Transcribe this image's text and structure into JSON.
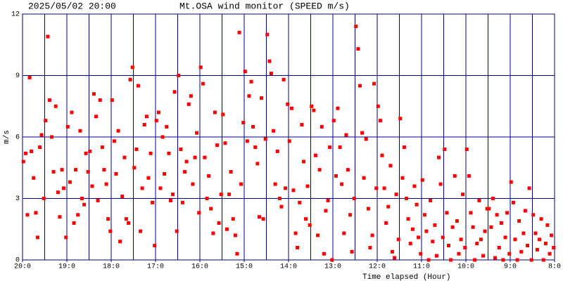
{
  "chart_data": {
    "type": "scatter",
    "title": "Mt.OSA wind monitor (SPEED m/s)",
    "subtitle": "2025/05/02 20:00",
    "x_label": "Time elapsed (Hour)",
    "y_label": "m/s",
    "xlim": [
      0,
      12
    ],
    "ylim": [
      0,
      12
    ],
    "xticks": [
      {
        "value": 0,
        "label": "20:0"
      },
      {
        "value": 1,
        "label": "19:0"
      },
      {
        "value": 2,
        "label": "18:0"
      },
      {
        "value": 3,
        "label": "17:0"
      },
      {
        "value": 4,
        "label": "16:0"
      },
      {
        "value": 5,
        "label": "15:0"
      },
      {
        "value": 6,
        "label": "14:0"
      },
      {
        "value": 7,
        "label": "13:0"
      },
      {
        "value": 8,
        "label": "12:0"
      },
      {
        "value": 9,
        "label": "11:0"
      },
      {
        "value": 10,
        "label": "10:0"
      },
      {
        "value": 11,
        "label": "9:0"
      },
      {
        "value": 12,
        "label": "8:0"
      }
    ],
    "xgrid": [
      0.5,
      1,
      1.5,
      2,
      2.5,
      3,
      3.5,
      4,
      4.5,
      5,
      5.5,
      6,
      6.5,
      7,
      7.5,
      8,
      8.5,
      9,
      9.5,
      10,
      10.5,
      11,
      11.5
    ],
    "yticks": [
      0,
      3,
      6,
      9,
      12
    ],
    "grid": true,
    "grid_color": "#000080",
    "series": [
      {
        "color": "#ff0000",
        "x": [
          0.02,
          0.07,
          0.11,
          0.16,
          0.2,
          0.25,
          0.3,
          0.34,
          0.39,
          0.43,
          0.48,
          0.52,
          0.57,
          0.61,
          0.66,
          0.7,
          0.75,
          0.8,
          0.84,
          0.89,
          0.93,
          0.98,
          1.02,
          1.07,
          1.11,
          1.16,
          1.2,
          1.25,
          1.3,
          1.34,
          1.39,
          1.43,
          1.48,
          1.52,
          1.57,
          1.61,
          1.66,
          1.7,
          1.75,
          1.8,
          1.84,
          1.89,
          1.93,
          1.98,
          2.02,
          2.07,
          2.11,
          2.16,
          2.2,
          2.25,
          2.3,
          2.34,
          2.39,
          2.43,
          2.48,
          2.52,
          2.57,
          2.61,
          2.66,
          2.7,
          2.75,
          2.8,
          2.84,
          2.89,
          2.93,
          2.98,
          3.02,
          3.07,
          3.11,
          3.16,
          3.2,
          3.25,
          3.3,
          3.34,
          3.39,
          3.43,
          3.48,
          3.52,
          3.57,
          3.61,
          3.66,
          3.7,
          3.75,
          3.8,
          3.84,
          3.89,
          3.93,
          3.98,
          4.02,
          4.07,
          4.11,
          4.16,
          4.2,
          4.25,
          4.3,
          4.34,
          4.39,
          4.43,
          4.48,
          4.52,
          4.57,
          4.61,
          4.66,
          4.7,
          4.75,
          4.8,
          4.84,
          4.89,
          4.93,
          4.98,
          5.02,
          5.07,
          5.11,
          5.16,
          5.2,
          5.25,
          5.3,
          5.34,
          5.39,
          5.43,
          5.48,
          5.52,
          5.57,
          5.61,
          5.66,
          5.7,
          5.75,
          5.8,
          5.84,
          5.89,
          5.93,
          5.98,
          6.02,
          6.07,
          6.11,
          6.16,
          6.2,
          6.25,
          6.3,
          6.34,
          6.39,
          6.43,
          6.48,
          6.52,
          6.57,
          6.61,
          6.66,
          6.7,
          6.75,
          6.8,
          6.84,
          6.89,
          6.93,
          6.98,
          7.02,
          7.07,
          7.11,
          7.16,
          7.2,
          7.25,
          7.3,
          7.34,
          7.39,
          7.43,
          7.48,
          7.52,
          7.57,
          7.61,
          7.66,
          7.7,
          7.75,
          7.8,
          7.84,
          7.89,
          7.93,
          7.98,
          8.02,
          8.07,
          8.11,
          8.16,
          8.2,
          8.25,
          8.3,
          8.34,
          8.39,
          8.43,
          8.48,
          8.52,
          8.57,
          8.61,
          8.66,
          8.7,
          8.75,
          8.8,
          8.84,
          8.89,
          8.93,
          8.98,
          9.02,
          9.07,
          9.11,
          9.16,
          9.2,
          9.25,
          9.3,
          9.34,
          9.39,
          9.43,
          9.48,
          9.52,
          9.57,
          9.61,
          9.66,
          9.7,
          9.75,
          9.8,
          9.84,
          9.89,
          9.93,
          9.98,
          10.02,
          10.07,
          10.11,
          10.16,
          10.2,
          10.25,
          10.3,
          10.34,
          10.39,
          10.43,
          10.48,
          10.52,
          10.57,
          10.61,
          10.66,
          10.7,
          10.75,
          10.8,
          10.84,
          10.89,
          10.93,
          10.98,
          11.02,
          11.07,
          11.11,
          11.16,
          11.2,
          11.25,
          11.3,
          11.34,
          11.39,
          11.43,
          11.48,
          11.52,
          11.57,
          11.61,
          11.66,
          11.7,
          11.75,
          11.8,
          11.84,
          11.89,
          11.93,
          11.98
        ],
        "values": [
          4.8,
          5.2,
          2.2,
          8.9,
          5.3,
          4.0,
          2.3,
          1.1,
          5.5,
          6.1,
          3.0,
          6.8,
          10.9,
          7.8,
          6.0,
          4.3,
          7.5,
          3.3,
          2.1,
          4.4,
          3.5,
          1.1,
          6.5,
          3.8,
          7.2,
          1.8,
          4.4,
          2.2,
          6.3,
          3.0,
          2.7,
          5.2,
          4.3,
          5.3,
          3.6,
          8.1,
          7.0,
          2.9,
          7.8,
          5.5,
          4.4,
          3.7,
          2.0,
          1.4,
          7.8,
          5.8,
          4.2,
          6.3,
          0.9,
          3.1,
          5.0,
          2.0,
          1.8,
          8.8,
          9.4,
          4.5,
          5.4,
          8.5,
          1.4,
          3.5,
          6.6,
          7.0,
          4.0,
          5.2,
          2.8,
          0.7,
          6.8,
          7.2,
          3.5,
          6.0,
          4.2,
          6.5,
          5.2,
          2.9,
          3.2,
          8.2,
          1.4,
          9.0,
          5.4,
          2.8,
          4.3,
          4.8,
          7.6,
          8.0,
          3.7,
          5.0,
          6.2,
          2.3,
          9.4,
          8.6,
          5.0,
          3.0,
          4.1,
          2.5,
          1.3,
          7.2,
          5.6,
          1.8,
          3.2,
          7.1,
          5.7,
          1.5,
          3.2,
          4.3,
          2.0,
          1.2,
          0.3,
          11.1,
          3.7,
          6.7,
          9.2,
          5.8,
          8.0,
          8.7,
          6.5,
          5.5,
          4.7,
          2.1,
          7.9,
          2.0,
          5.9,
          11.0,
          9.7,
          9.1,
          6.3,
          3.7,
          5.3,
          3.0,
          2.6,
          8.8,
          3.5,
          7.6,
          5.8,
          7.4,
          3.4,
          1.3,
          0.6,
          2.8,
          6.6,
          4.8,
          2.0,
          3.6,
          1.7,
          7.5,
          7.3,
          5.1,
          1.2,
          4.4,
          6.5,
          0.3,
          2.4,
          2.9,
          5.5,
          0.0,
          6.8,
          4.1,
          7.4,
          5.5,
          3.7,
          1.3,
          6.1,
          4.4,
          2.2,
          0.4,
          3.0,
          11.4,
          10.3,
          8.5,
          6.2,
          4.0,
          5.9,
          2.5,
          0.6,
          1.2,
          8.6,
          3.5,
          7.5,
          6.8,
          5.1,
          3.5,
          1.8,
          2.6,
          4.6,
          0.4,
          0.1,
          3.2,
          1.0,
          6.9,
          4.0,
          5.5,
          3.0,
          2.0,
          0.8,
          1.5,
          3.6,
          2.7,
          1.1,
          0.3,
          3.9,
          2.2,
          1.4,
          0.0,
          2.9,
          0.9,
          1.7,
          0.2,
          5.0,
          3.7,
          1.1,
          5.4,
          2.3,
          0.7,
          0.0,
          1.6,
          4.1,
          1.9,
          0.3,
          1.0,
          3.2,
          0.6,
          5.4,
          4.1,
          2.3,
          1.6,
          0.0,
          0.8,
          2.9,
          1.0,
          0.2,
          1.4,
          2.5,
          2.5,
          1.6,
          3.0,
          0.1,
          2.2,
          0.6,
          1.8,
          0.0,
          1.1,
          2.3,
          0.3,
          3.8,
          2.8,
          1.0,
          0.0,
          1.9,
          0.4,
          1.3,
          2.4,
          0.7,
          3.5,
          0.0,
          2.2,
          1.3,
          0.5,
          1.0,
          2.0,
          0.0,
          0.8,
          1.7,
          0.3,
          1.2,
          0.6
        ]
      }
    ]
  }
}
